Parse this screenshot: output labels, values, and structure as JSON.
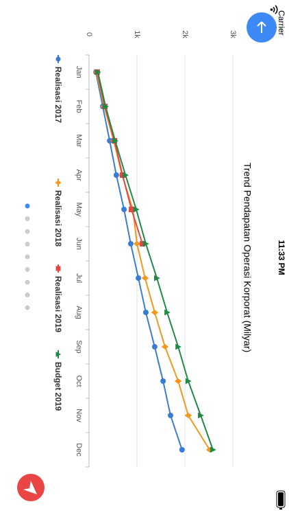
{
  "status_bar": {
    "carrier": "Carrier",
    "time": "11:33 PM"
  },
  "chart_data": {
    "type": "line",
    "title": "Trend Pendapatan Operasi Korporat (Milyar)",
    "categories": [
      "Jan",
      "Feb",
      "Mar",
      "Apr",
      "May",
      "Jun",
      "Jul",
      "Aug",
      "Sep",
      "Oct",
      "Nov",
      "Dec"
    ],
    "series": [
      {
        "name": "Realisasi 2017",
        "color": "#3a7bd5",
        "marker": "circle",
        "values": [
          143,
          286,
          430,
          570,
          730,
          870,
          1030,
          1185,
          1370,
          1545,
          1700,
          1940
        ]
      },
      {
        "name": "Realisasi 2018",
        "color": "#f5961e",
        "marker": "diamond",
        "values": [
          157,
          315,
          515,
          690,
          915,
          1000,
          1170,
          1370,
          1585,
          1860,
          2070,
          2515
        ]
      },
      {
        "name": "Realisasi 2019",
        "color": "#e04848",
        "marker": "square",
        "values": [
          170,
          330,
          530,
          700,
          885,
          1115,
          null,
          null,
          null,
          null,
          null,
          null
        ]
      },
      {
        "name": "Budget 2019",
        "color": "#1e8a45",
        "marker": "triangle",
        "values": [
          185,
          345,
          545,
          760,
          985,
          1185,
          1415,
          1630,
          1860,
          2070,
          2330,
          2585
        ]
      }
    ],
    "ylim": [
      0,
      3000
    ],
    "yticks": [
      0,
      {
        "value": 1000,
        "label": "1k"
      },
      {
        "value": 2000,
        "label": "2k"
      },
      {
        "value": 3000,
        "label": "3k"
      }
    ],
    "grid": true,
    "legend": "bottom"
  }
}
